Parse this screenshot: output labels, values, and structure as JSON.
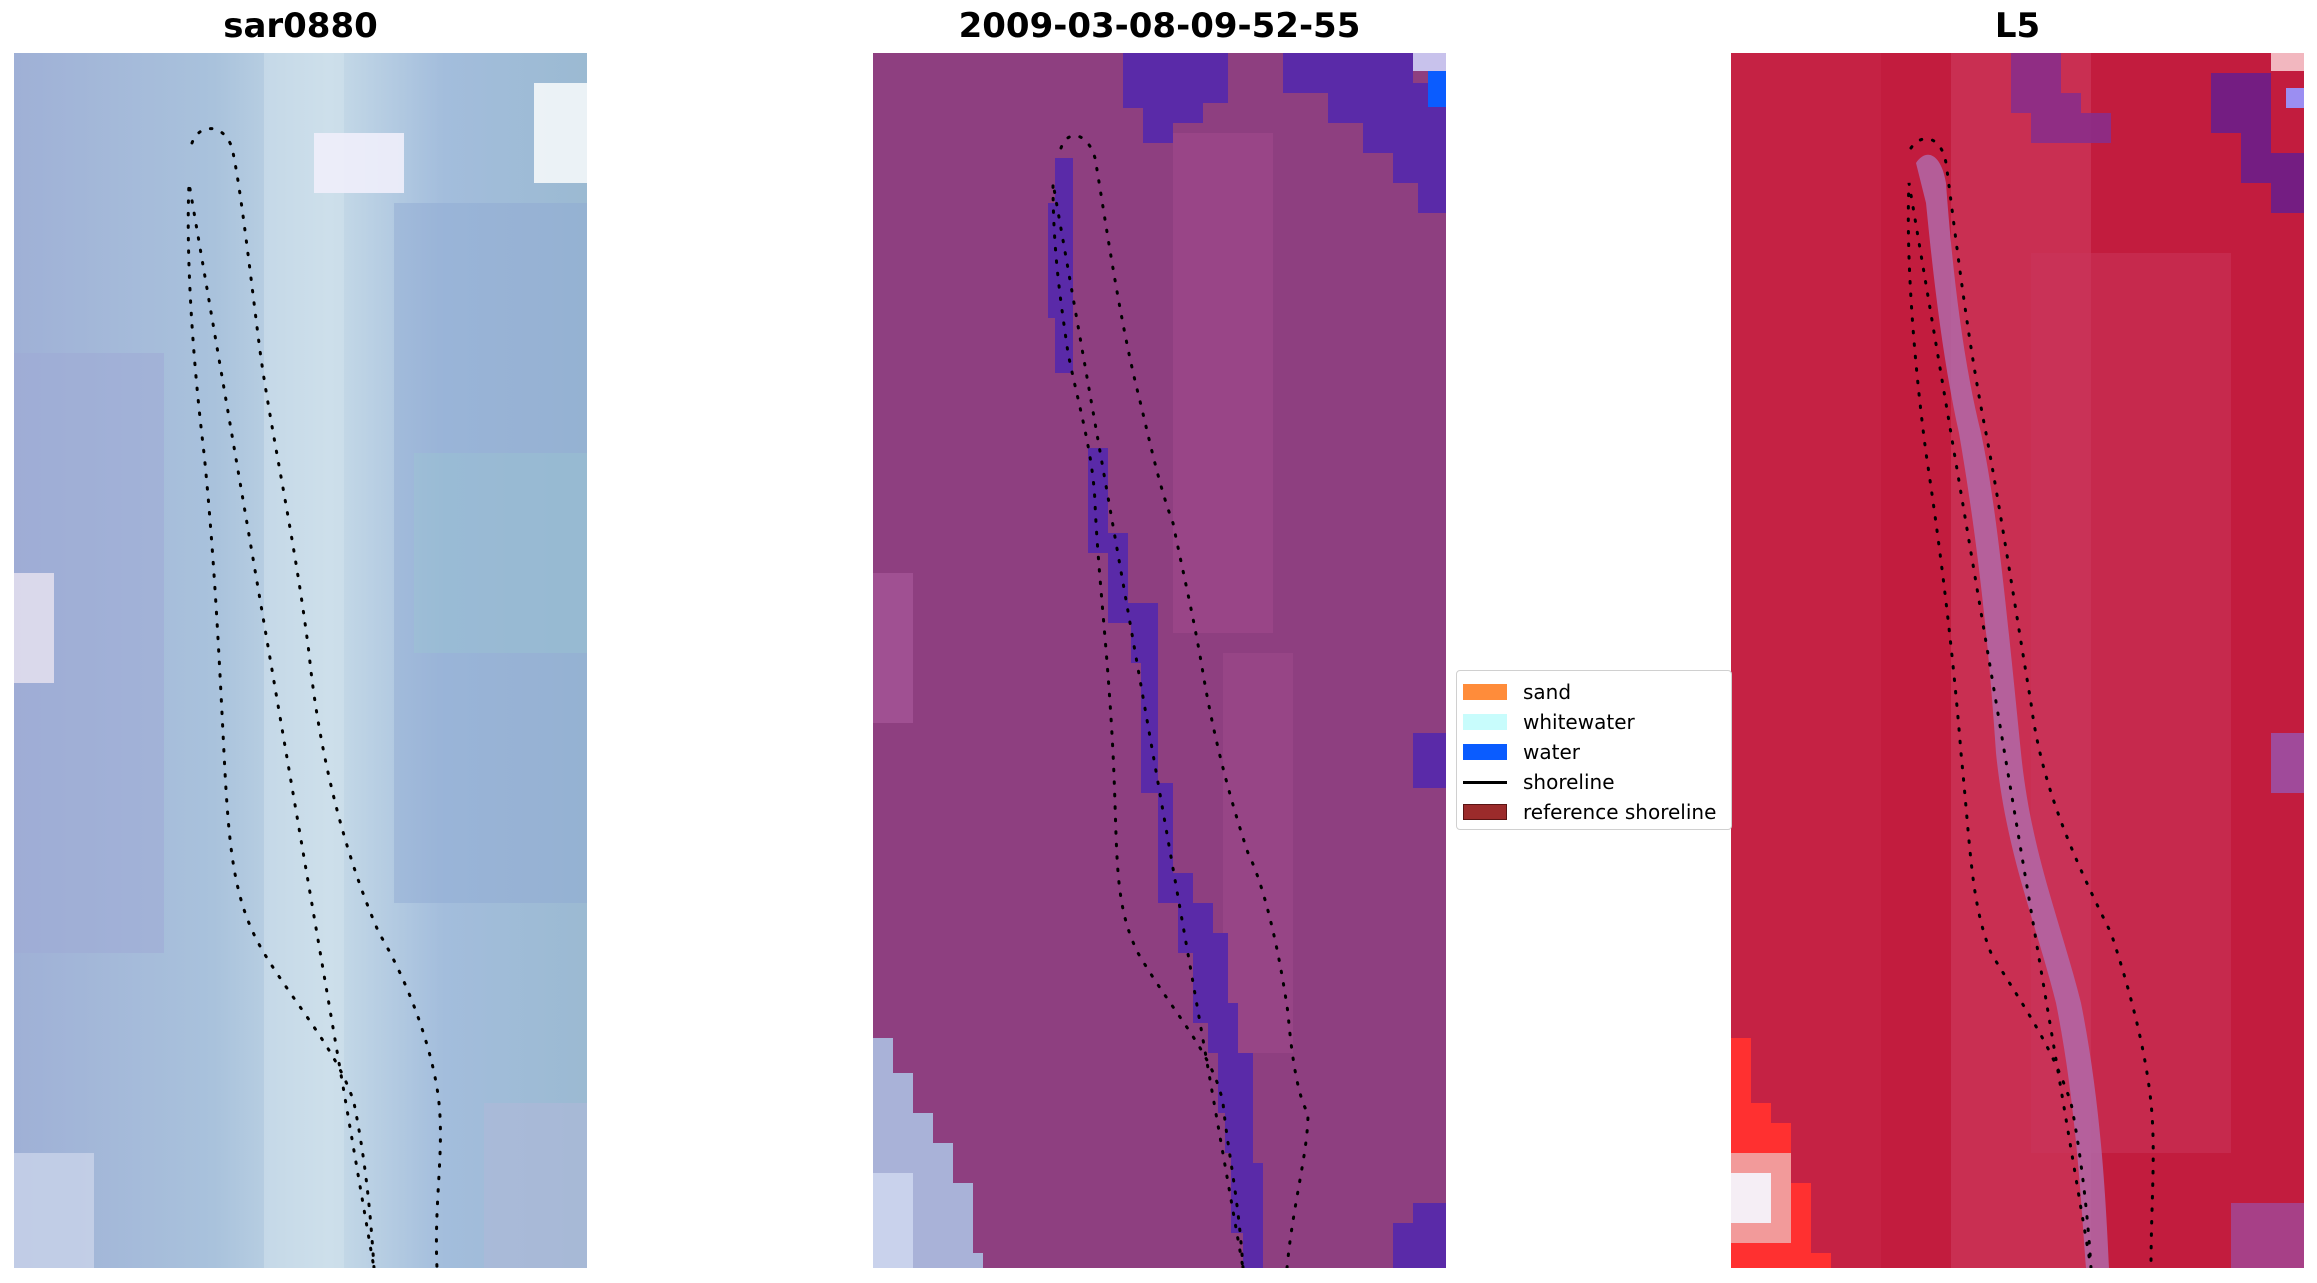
{
  "panels": [
    {
      "title": "sar0880",
      "base_color": "#a5b3dc"
    },
    {
      "title": "2009-03-08-09-52-55",
      "base_color": "#8e3f80",
      "water_class_color": "#5a2aa8"
    },
    {
      "title": "L5",
      "base_color": "#c21c3e"
    }
  ],
  "legend": {
    "items": [
      {
        "label": "sand",
        "color": "#ff8c3a",
        "kind": "patch"
      },
      {
        "label": "whitewater",
        "color": "#c8fcfc",
        "kind": "patch"
      },
      {
        "label": "water",
        "color": "#0a5cff",
        "kind": "patch"
      },
      {
        "label": "shoreline",
        "color": "#000000",
        "kind": "line"
      },
      {
        "label": "reference shoreline",
        "color": "#9b2b2b",
        "kind": "patch"
      }
    ]
  }
}
